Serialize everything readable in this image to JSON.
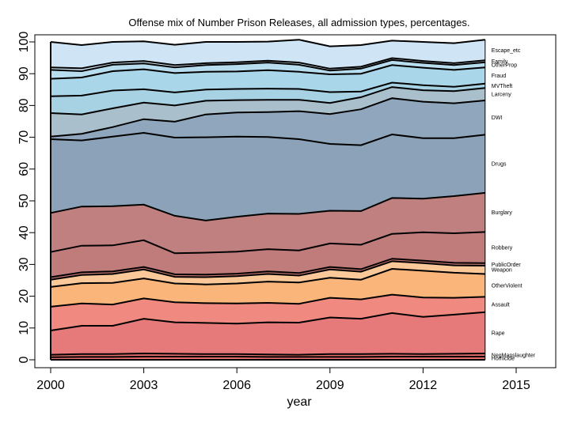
{
  "chart_data": {
    "type": "area",
    "title": "Offense mix of Number Prison Releases,  all admission types, percentages.",
    "xlabel": "year",
    "ylabel": "",
    "x": [
      2000,
      2001,
      2002,
      2003,
      2004,
      2005,
      2006,
      2007,
      2008,
      2009,
      2010,
      2011,
      2012,
      2013,
      2014
    ],
    "xlim": [
      2000,
      2016
    ],
    "ylim": [
      0,
      100
    ],
    "xticks": [
      2000,
      2003,
      2006,
      2009,
      2012,
      2015
    ],
    "yticks": [
      0,
      10,
      20,
      30,
      40,
      50,
      60,
      70,
      80,
      90,
      100
    ],
    "stacked": true,
    "grid": false,
    "legend": "direct labels at right",
    "series": [
      {
        "name": "Homicide",
        "color": "#e36c6c",
        "values": [
          0.8,
          0.9,
          0.9,
          1.0,
          1.0,
          1.0,
          1.0,
          0.9,
          0.9,
          0.9,
          0.9,
          1.0,
          1.0,
          1.0,
          1.0
        ]
      },
      {
        "name": "NegManslaughter",
        "color": "#e36c6c",
        "values": [
          0.8,
          0.9,
          0.9,
          1.0,
          0.9,
          0.8,
          0.8,
          0.8,
          0.7,
          0.9,
          0.9,
          0.9,
          0.8,
          0.9,
          1.0
        ]
      },
      {
        "name": "Rape",
        "color": "#e67a7a",
        "values": [
          7.6,
          8.9,
          8.9,
          10.9,
          9.9,
          9.8,
          9.6,
          10.1,
          10.1,
          11.5,
          11.1,
          12.8,
          11.7,
          12.3,
          13.0
        ]
      },
      {
        "name": "Assault",
        "color": "#f08a80",
        "values": [
          7.5,
          7.0,
          6.7,
          6.4,
          6.3,
          6.2,
          6.3,
          6.1,
          5.9,
          6.2,
          6.1,
          5.8,
          6.1,
          5.3,
          4.8
        ]
      },
      {
        "name": "OtherViolent",
        "color": "#f9b57a",
        "values": [
          6.2,
          6.4,
          6.8,
          6.3,
          5.9,
          5.9,
          6.3,
          6.7,
          6.7,
          6.3,
          6.2,
          8.1,
          8.4,
          7.9,
          7.2
        ]
      },
      {
        "name": "Weapon",
        "color": "#fbc89a",
        "values": [
          2.3,
          2.6,
          2.8,
          2.8,
          2.1,
          2.3,
          2.3,
          2.4,
          2.2,
          2.6,
          2.5,
          2.4,
          2.4,
          2.3,
          2.6
        ]
      },
      {
        "name": "PublicOrder",
        "color": "#c07470",
        "values": [
          0.8,
          0.8,
          0.8,
          0.8,
          0.8,
          0.8,
          0.8,
          0.8,
          0.8,
          0.8,
          0.8,
          0.8,
          0.8,
          0.8,
          0.8
        ]
      },
      {
        "name": "Robbery",
        "color": "#c07b7b",
        "values": [
          7.9,
          8.4,
          8.2,
          8.4,
          6.6,
          6.9,
          6.9,
          7.0,
          7.1,
          7.4,
          7.7,
          7.8,
          8.9,
          9.3,
          9.8
        ]
      },
      {
        "name": "Burglary",
        "color": "#c08080",
        "values": [
          12.3,
          12.3,
          12.3,
          11.2,
          11.8,
          10.1,
          11.0,
          11.2,
          11.5,
          10.3,
          10.6,
          11.3,
          10.6,
          11.7,
          12.3
        ]
      },
      {
        "name": "Drugs",
        "color": "#8ca2b8",
        "values": [
          23.2,
          20.8,
          21.9,
          22.6,
          24.6,
          26.2,
          25.2,
          24.1,
          23.5,
          21.0,
          20.7,
          20.0,
          19.0,
          18.2,
          18.3
        ]
      },
      {
        "name": "DWI",
        "color": "#8fa6bc",
        "values": [
          0.8,
          2.1,
          3.0,
          4.3,
          5.0,
          7.2,
          7.6,
          7.8,
          8.8,
          9.4,
          11.3,
          11.4,
          11.5,
          11.0,
          10.8
        ]
      },
      {
        "name": "Larceny",
        "color": "#aabfcc",
        "values": [
          7.4,
          6.1,
          5.9,
          5.2,
          5.1,
          4.3,
          3.9,
          3.9,
          3.6,
          3.5,
          3.8,
          3.5,
          3.6,
          3.8,
          3.9
        ]
      },
      {
        "name": "MVTheft",
        "color": "#a6d2e4",
        "values": [
          5.3,
          5.9,
          5.6,
          4.2,
          4.1,
          3.5,
          3.5,
          3.5,
          3.4,
          3.4,
          1.8,
          1.4,
          1.6,
          1.4,
          1.4
        ]
      },
      {
        "name": "Fraud",
        "color": "#a9d6e8",
        "values": [
          5.5,
          5.7,
          6.1,
          6.3,
          6.1,
          5.6,
          5.5,
          5.8,
          5.4,
          5.6,
          5.6,
          5.5,
          5.5,
          5.3,
          5.1
        ]
      },
      {
        "name": "OtherProp",
        "color": "#b8ddee",
        "values": [
          2.8,
          2.0,
          2.0,
          1.8,
          1.8,
          2.1,
          2.3,
          2.4,
          2.2,
          1.2,
          1.6,
          1.6,
          1.5,
          1.5,
          1.6
        ]
      },
      {
        "name": "Family",
        "color": "#cce4f3",
        "values": [
          0.8,
          0.9,
          0.7,
          0.8,
          0.7,
          0.6,
          0.6,
          0.6,
          0.7,
          0.6,
          0.6,
          0.6,
          0.6,
          0.6,
          0.6
        ]
      },
      {
        "name": "Escape_etc",
        "color": "#cfe5f5",
        "values": [
          8.0,
          7.3,
          6.5,
          6.2,
          6.4,
          6.7,
          6.4,
          6.0,
          7.2,
          7.0,
          6.8,
          5.5,
          6.0,
          6.3,
          6.5
        ]
      }
    ]
  }
}
